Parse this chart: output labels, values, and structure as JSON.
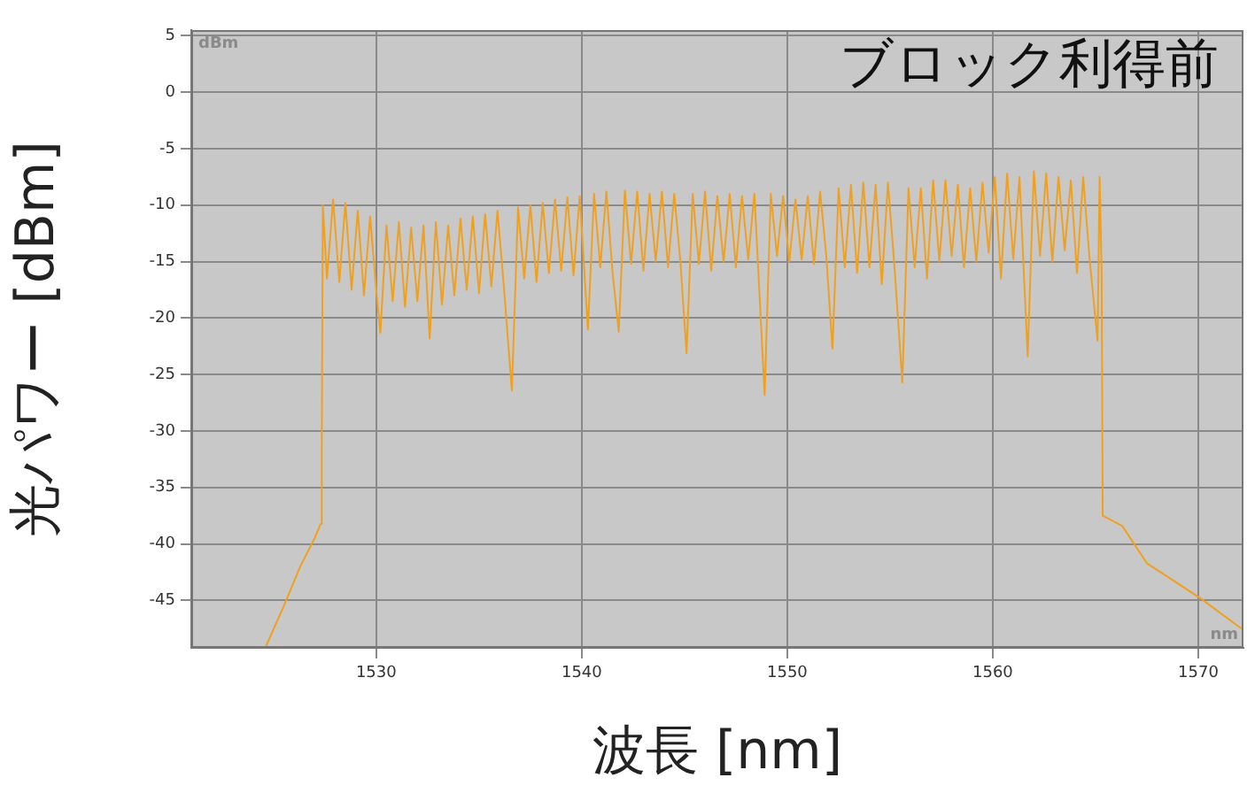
{
  "chart_data": {
    "type": "line",
    "title": "ブロック利得前",
    "xlabel": "波長 [nm]",
    "ylabel": "光パワー [dBm]",
    "annotations": [
      "dBm",
      "nm"
    ],
    "xlim": [
      1521,
      1572.2
    ],
    "ylim": [
      -49.2,
      5.5
    ],
    "xticks": [
      1530,
      1540,
      1550,
      1560,
      1570
    ],
    "yticks": [
      5,
      0,
      -5,
      -10,
      -15,
      -20,
      -25,
      -30,
      -35,
      -40,
      -45
    ],
    "grid": true,
    "legend": false,
    "marker": "none",
    "line_style": "solid",
    "series": [
      {
        "color": "#f0a020",
        "x": [
          1524.6,
          1525.5,
          1526.3,
          1527.0,
          1527.3,
          1527.35,
          1527.4,
          1527.6,
          1527.9,
          1528.2,
          1528.5,
          1528.8,
          1529.1,
          1529.4,
          1529.7,
          1530.0,
          1530.2,
          1530.5,
          1530.8,
          1531.1,
          1531.4,
          1531.7,
          1532.0,
          1532.3,
          1532.6,
          1532.9,
          1533.2,
          1533.5,
          1533.8,
          1534.1,
          1534.4,
          1534.7,
          1535.0,
          1535.3,
          1535.6,
          1535.9,
          1536.2,
          1536.6,
          1536.9,
          1537.2,
          1537.5,
          1537.8,
          1538.1,
          1538.4,
          1538.7,
          1539.0,
          1539.3,
          1539.6,
          1539.9,
          1540.3,
          1540.6,
          1540.9,
          1541.2,
          1541.5,
          1541.8,
          1542.1,
          1542.4,
          1542.7,
          1543.0,
          1543.3,
          1543.6,
          1543.9,
          1544.2,
          1544.5,
          1544.8,
          1545.1,
          1545.4,
          1545.7,
          1546.0,
          1546.3,
          1546.6,
          1546.9,
          1547.2,
          1547.5,
          1547.8,
          1548.1,
          1548.4,
          1548.9,
          1549.2,
          1549.5,
          1549.8,
          1550.1,
          1550.4,
          1550.7,
          1551.0,
          1551.3,
          1551.6,
          1551.9,
          1552.2,
          1552.5,
          1552.8,
          1553.1,
          1553.4,
          1553.7,
          1554.0,
          1554.3,
          1554.6,
          1554.9,
          1555.2,
          1555.6,
          1555.9,
          1556.2,
          1556.5,
          1556.8,
          1557.1,
          1557.4,
          1557.7,
          1558.0,
          1558.3,
          1558.6,
          1558.9,
          1559.2,
          1559.5,
          1559.8,
          1560.1,
          1560.4,
          1560.7,
          1561.0,
          1561.3,
          1561.7,
          1562.0,
          1562.3,
          1562.6,
          1562.9,
          1563.2,
          1563.5,
          1563.8,
          1564.1,
          1564.4,
          1564.7,
          1565.1,
          1565.2,
          1565.3,
          1565.35,
          1566.3,
          1567.5,
          1570.1,
          1572.1
        ],
        "values": [
          -49.2,
          -45.5,
          -42,
          -39.5,
          -38.2,
          -31,
          -10,
          -16.5,
          -9.5,
          -16.8,
          -9.8,
          -17.5,
          -10.5,
          -18,
          -11,
          -17.5,
          -21.3,
          -11.8,
          -18.5,
          -11.5,
          -19,
          -12,
          -18.5,
          -11.8,
          -21.8,
          -11.5,
          -18.8,
          -11.8,
          -18,
          -11.2,
          -17.5,
          -11,
          -17.8,
          -10.8,
          -17.2,
          -10.5,
          -17,
          -26.4,
          -10.2,
          -16.5,
          -10,
          -16.8,
          -9.8,
          -16,
          -9.5,
          -15.8,
          -9.3,
          -16.2,
          -9.2,
          -21,
          -9,
          -15.5,
          -8.8,
          -16,
          -21.2,
          -8.7,
          -15.2,
          -8.8,
          -15.8,
          -9,
          -15,
          -8.8,
          -15.5,
          -9,
          -15,
          -23.1,
          -9,
          -15.2,
          -8.8,
          -15.8,
          -9.2,
          -15,
          -9,
          -15.5,
          -9.2,
          -14.8,
          -9,
          -26.8,
          -9,
          -14.5,
          -9.2,
          -15,
          -9.5,
          -14.8,
          -9.2,
          -15.2,
          -8.8,
          -14.5,
          -22.7,
          -8.5,
          -15.5,
          -8.2,
          -16,
          -8,
          -15.5,
          -8.2,
          -17,
          -8,
          -15,
          -25.7,
          -8.5,
          -15.5,
          -8.5,
          -16.5,
          -7.8,
          -15,
          -7.8,
          -14.5,
          -8.2,
          -15.5,
          -8.5,
          -15,
          -8,
          -14.2,
          -7.5,
          -16.5,
          -7.2,
          -14.8,
          -7.5,
          -23.4,
          -7,
          -14.5,
          -7.2,
          -15,
          -7.5,
          -14,
          -7.8,
          -16,
          -7.5,
          -14.5,
          -22,
          -7.5,
          -16,
          -37.5,
          -38.4,
          -41.7,
          -44.8,
          -47.5
        ]
      }
    ]
  }
}
